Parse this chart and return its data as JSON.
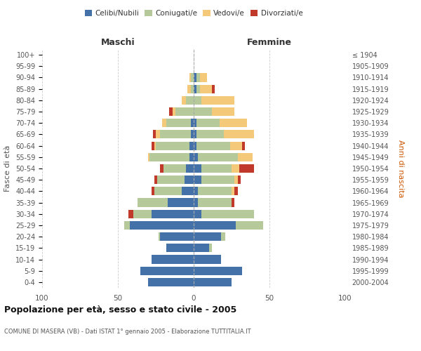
{
  "age_groups": [
    "0-4",
    "5-9",
    "10-14",
    "15-19",
    "20-24",
    "25-29",
    "30-34",
    "35-39",
    "40-44",
    "45-49",
    "50-54",
    "55-59",
    "60-64",
    "65-69",
    "70-74",
    "75-79",
    "80-84",
    "85-89",
    "90-94",
    "95-99",
    "100+"
  ],
  "birth_years": [
    "2000-2004",
    "1995-1999",
    "1990-1994",
    "1985-1989",
    "1980-1984",
    "1975-1979",
    "1970-1974",
    "1965-1969",
    "1960-1964",
    "1955-1959",
    "1950-1954",
    "1945-1949",
    "1940-1944",
    "1935-1939",
    "1930-1934",
    "1925-1929",
    "1920-1924",
    "1915-1919",
    "1910-1914",
    "1905-1909",
    "≤ 1904"
  ],
  "maschi": {
    "celibi": [
      30,
      35,
      28,
      18,
      22,
      42,
      28,
      17,
      8,
      6,
      5,
      3,
      3,
      2,
      2,
      0,
      0,
      0,
      0,
      0,
      0
    ],
    "coniugati": [
      0,
      0,
      0,
      0,
      1,
      4,
      12,
      20,
      18,
      18,
      15,
      26,
      22,
      20,
      16,
      12,
      5,
      2,
      2,
      0,
      0
    ],
    "vedovi": [
      0,
      0,
      0,
      0,
      0,
      0,
      0,
      0,
      0,
      0,
      0,
      1,
      1,
      3,
      3,
      2,
      3,
      2,
      1,
      0,
      0
    ],
    "divorziati": [
      0,
      0,
      0,
      0,
      0,
      0,
      3,
      0,
      2,
      2,
      2,
      0,
      2,
      2,
      0,
      2,
      0,
      0,
      0,
      0,
      0
    ]
  },
  "femmine": {
    "nubili": [
      25,
      32,
      18,
      10,
      18,
      28,
      5,
      3,
      3,
      5,
      5,
      3,
      2,
      2,
      2,
      0,
      0,
      2,
      2,
      0,
      0
    ],
    "coniugate": [
      0,
      0,
      0,
      2,
      3,
      18,
      35,
      22,
      22,
      22,
      20,
      26,
      22,
      18,
      15,
      12,
      5,
      2,
      2,
      0,
      0
    ],
    "vedove": [
      0,
      0,
      0,
      0,
      0,
      0,
      0,
      0,
      2,
      2,
      5,
      10,
      8,
      20,
      18,
      15,
      22,
      8,
      5,
      0,
      0
    ],
    "divorziate": [
      0,
      0,
      0,
      0,
      0,
      0,
      0,
      2,
      2,
      2,
      10,
      0,
      2,
      0,
      0,
      0,
      0,
      2,
      0,
      0,
      0
    ]
  },
  "colors": {
    "celibi_nubili": "#4472a8",
    "coniugati": "#b5c99a",
    "vedovi": "#f5c97a",
    "divorziati": "#c0392b"
  },
  "xlim": 100,
  "title": "Popolazione per età, sesso e stato civile - 2005",
  "subtitle": "COMUNE DI MASERA (VB) - Dati ISTAT 1° gennaio 2005 - Elaborazione TUTTITALIA.IT",
  "ylabel_left": "Fasce di età",
  "ylabel_right": "Anni di nascita",
  "xlabel_maschi": "Maschi",
  "xlabel_femmine": "Femmine",
  "background_color": "#ffffff",
  "grid_color": "#cccccc"
}
